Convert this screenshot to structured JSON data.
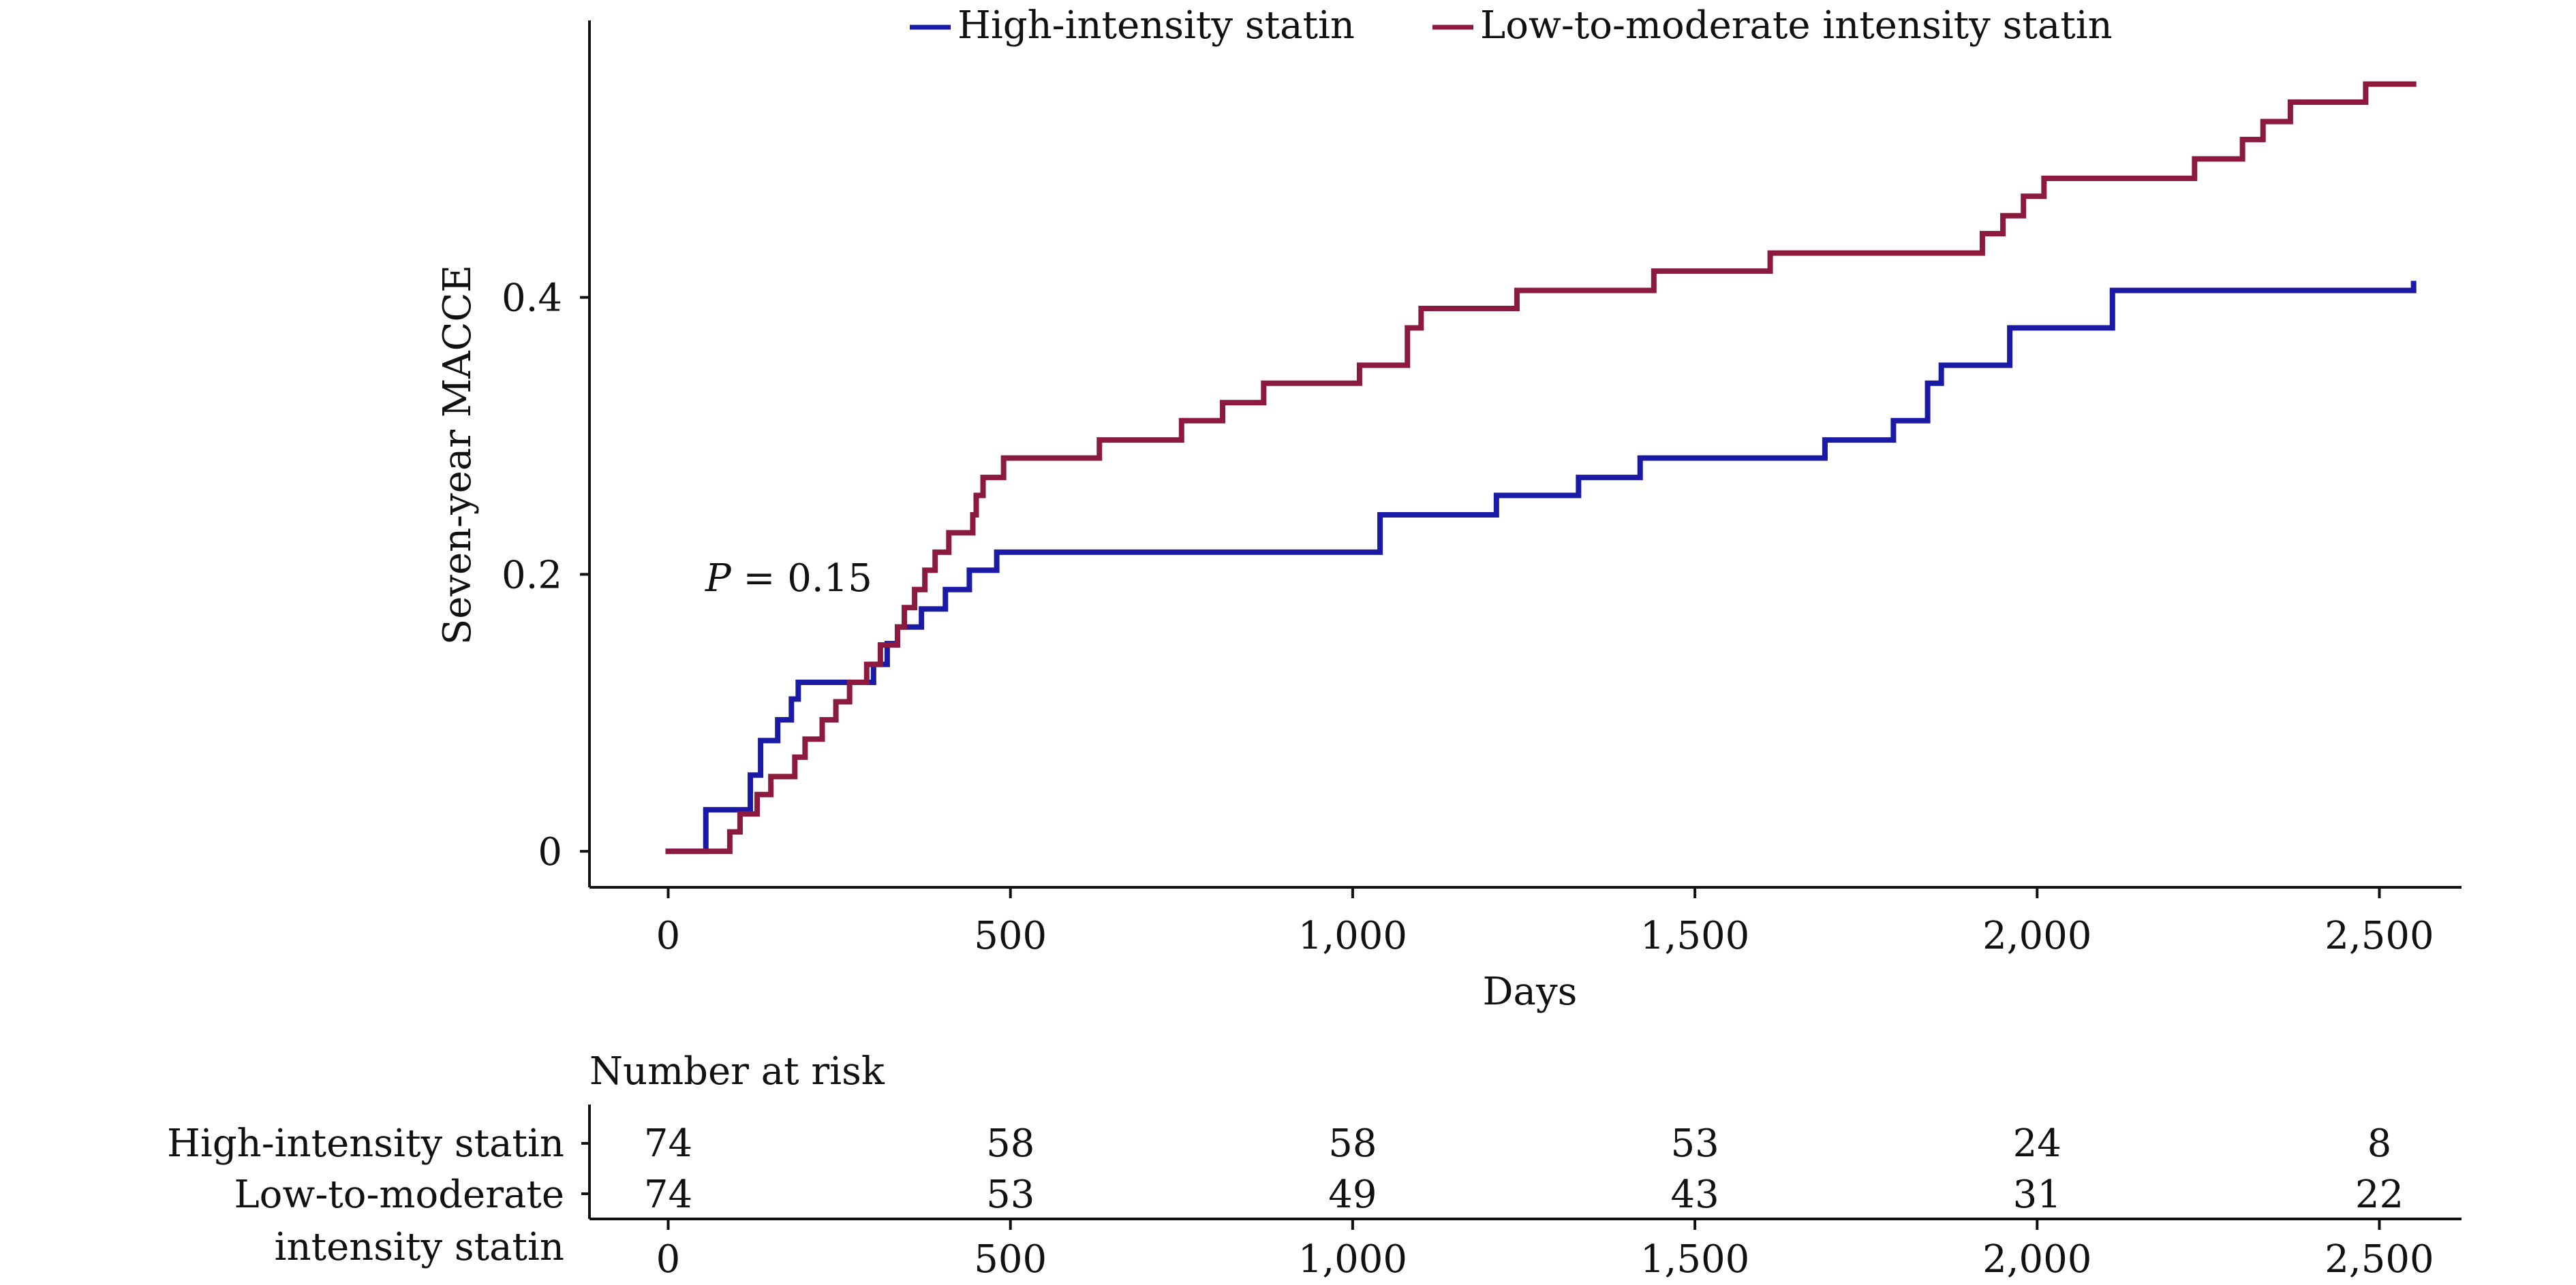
{
  "chart_data": {
    "type": "line",
    "step": true,
    "xlabel": "Days",
    "ylabel": "Seven-year MACCE",
    "xlim": [
      -115,
      2620
    ],
    "ylim": [
      -0.026,
      0.6
    ],
    "xticks": [
      0,
      500,
      1000,
      1500,
      2000,
      2500
    ],
    "xtick_labels": [
      "0",
      "500",
      "1,000",
      "1,500",
      "2,000",
      "2,500"
    ],
    "yticks": [
      0,
      0.2,
      0.4
    ],
    "ytick_labels": [
      "0",
      "0.2",
      "0.4"
    ],
    "annotation": {
      "italic": "P",
      "rest": " = 0.15",
      "x": 50,
      "y": 0.19
    },
    "legend_placement": "top-center",
    "series": [
      {
        "name": "High-intensity statin",
        "color": "#1a1aa6",
        "points": [
          [
            0,
            0
          ],
          [
            50,
            0
          ],
          [
            55,
            0.03
          ],
          [
            115,
            0.03
          ],
          [
            120,
            0.055
          ],
          [
            135,
            0.08
          ],
          [
            160,
            0.095
          ],
          [
            180,
            0.11
          ],
          [
            190,
            0.122
          ],
          [
            290,
            0.122
          ],
          [
            300,
            0.135
          ],
          [
            320,
            0.15
          ],
          [
            335,
            0.162
          ],
          [
            370,
            0.175
          ],
          [
            405,
            0.189
          ],
          [
            440,
            0.203
          ],
          [
            480,
            0.216
          ],
          [
            1035,
            0.216
          ],
          [
            1040,
            0.243
          ],
          [
            1210,
            0.257
          ],
          [
            1330,
            0.27
          ],
          [
            1420,
            0.284
          ],
          [
            1690,
            0.297
          ],
          [
            1790,
            0.311
          ],
          [
            1840,
            0.338
          ],
          [
            1860,
            0.351
          ],
          [
            1960,
            0.378
          ],
          [
            2110,
            0.405
          ],
          [
            2550,
            0.41
          ]
        ]
      },
      {
        "name": "Low-to-moderate intensity statin",
        "color": "#8b1a3e",
        "points": [
          [
            0,
            0
          ],
          [
            80,
            0
          ],
          [
            90,
            0.014
          ],
          [
            105,
            0.027
          ],
          [
            130,
            0.041
          ],
          [
            150,
            0.054
          ],
          [
            185,
            0.068
          ],
          [
            200,
            0.081
          ],
          [
            225,
            0.095
          ],
          [
            245,
            0.108
          ],
          [
            265,
            0.122
          ],
          [
            290,
            0.135
          ],
          [
            310,
            0.149
          ],
          [
            335,
            0.162
          ],
          [
            345,
            0.176
          ],
          [
            360,
            0.189
          ],
          [
            375,
            0.203
          ],
          [
            390,
            0.216
          ],
          [
            410,
            0.23
          ],
          [
            445,
            0.243
          ],
          [
            450,
            0.257
          ],
          [
            460,
            0.27
          ],
          [
            490,
            0.284
          ],
          [
            630,
            0.297
          ],
          [
            750,
            0.311
          ],
          [
            810,
            0.324
          ],
          [
            870,
            0.338
          ],
          [
            1010,
            0.351
          ],
          [
            1080,
            0.378
          ],
          [
            1100,
            0.392
          ],
          [
            1240,
            0.405
          ],
          [
            1440,
            0.419
          ],
          [
            1610,
            0.432
          ],
          [
            1920,
            0.446
          ],
          [
            1950,
            0.459
          ],
          [
            1980,
            0.473
          ],
          [
            2010,
            0.486
          ],
          [
            2230,
            0.5
          ],
          [
            2300,
            0.514
          ],
          [
            2330,
            0.527
          ],
          [
            2370,
            0.541
          ],
          [
            2480,
            0.554
          ],
          [
            2550,
            0.554
          ]
        ]
      }
    ]
  },
  "risk_table": {
    "title": "Number at risk",
    "rows": [
      {
        "label_lines": [
          "High-intensity statin"
        ],
        "color": "#1414c8",
        "values": [
          "74",
          "58",
          "58",
          "53",
          "24",
          "8"
        ]
      },
      {
        "label_lines": [
          "Low-to-moderate",
          "intensity statin"
        ],
        "color": "#e01b1b",
        "values": [
          "74",
          "53",
          "49",
          "43",
          "31",
          "22"
        ]
      }
    ],
    "xtick_labels": [
      "0",
      "500",
      "1,000",
      "1,500",
      "2,000",
      "2,500"
    ]
  }
}
